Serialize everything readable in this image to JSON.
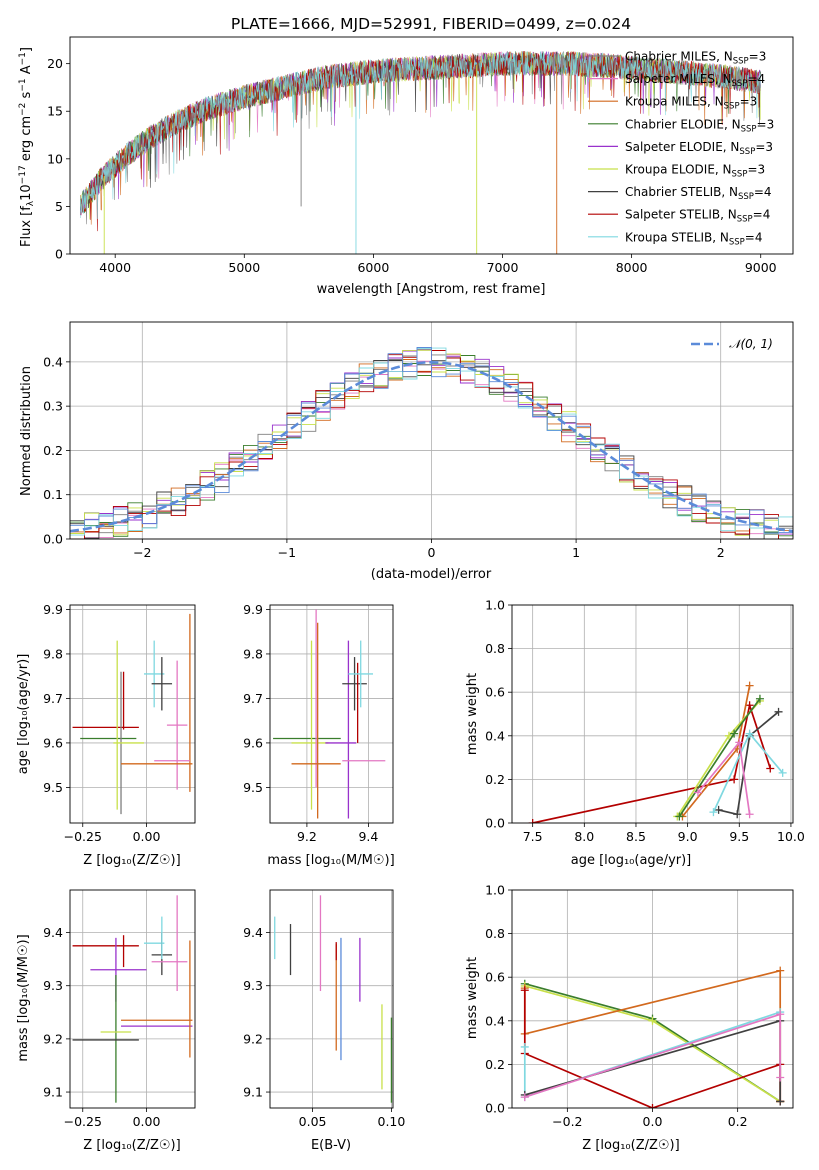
{
  "title": "PLATE=1666, MJD=52991, FIBERID=0499, z=0.024",
  "colors": {
    "chabrier_miles": "#7f7f7f",
    "salpeter_miles": "#e377c2",
    "kroupa_miles": "#d2691e",
    "chabrier_elodie": "#3a7d2c",
    "salpeter_elodie": "#9932cc",
    "kroupa_elodie": "#c8e04a",
    "chabrier_stelib": "#404040",
    "salpeter_stelib": "#b30000",
    "kroupa_stelib": "#7fd8e0",
    "gauss": "#5b8bd9"
  },
  "chart_data": [
    {
      "id": "spectrum",
      "type": "line",
      "xlabel": "wavelength [Angstrom, rest frame]",
      "ylabel": "Flux [f_λ10^−17 erg cm^−2 s^−1 A^−1]",
      "xlim": [
        3650,
        9250
      ],
      "ylim": [
        0,
        22.8
      ],
      "xticks": [
        4000,
        5000,
        6000,
        7000,
        8000,
        9000
      ],
      "yticks": [
        0,
        5,
        10,
        15,
        20
      ],
      "grid": false,
      "legend_position": "top-right",
      "legend": [
        {
          "label": "Chabrier MILES, N",
          "sub": "SSP",
          "tail": "=3",
          "key": "chabrier_miles"
        },
        {
          "label": "Salpeter MILES, N",
          "sub": "SSP",
          "tail": "=4",
          "key": "salpeter_miles"
        },
        {
          "label": "Kroupa MILES, N",
          "sub": "SSP",
          "tail": "=3",
          "key": "kroupa_miles"
        },
        {
          "label": "Chabrier ELODIE, N",
          "sub": "SSP",
          "tail": "=3",
          "key": "chabrier_elodie"
        },
        {
          "label": "Salpeter ELODIE, N",
          "sub": "SSP",
          "tail": "=3",
          "key": "salpeter_elodie"
        },
        {
          "label": "Kroupa ELODIE, N",
          "sub": "SSP",
          "tail": "=3",
          "key": "kroupa_elodie"
        },
        {
          "label": "Chabrier STELIB, N",
          "sub": "SSP",
          "tail": "=4",
          "key": "chabrier_stelib"
        },
        {
          "label": "Salpeter STELIB, N",
          "sub": "SSP",
          "tail": "=4",
          "key": "salpeter_stelib"
        },
        {
          "label": "Kroupa STELIB, N",
          "sub": "SSP",
          "tail": "=4",
          "key": "kroupa_stelib"
        }
      ],
      "continuum": [
        [
          3730,
          5
        ],
        [
          3900,
          8
        ],
        [
          4100,
          10.5
        ],
        [
          4300,
          12.5
        ],
        [
          4500,
          14
        ],
        [
          4700,
          15.2
        ],
        [
          5000,
          16.5
        ],
        [
          5300,
          17.5
        ],
        [
          5600,
          18.5
        ],
        [
          6000,
          19.2
        ],
        [
          6500,
          19.6
        ],
        [
          7000,
          20
        ],
        [
          7500,
          20
        ],
        [
          7800,
          19.8
        ],
        [
          8200,
          19.3
        ],
        [
          8600,
          18.8
        ],
        [
          8900,
          18.3
        ],
        [
          9000,
          18
        ]
      ],
      "dropouts": [
        {
          "x": 3915,
          "y": 0,
          "key": "kroupa_elodie"
        },
        {
          "x": 5440,
          "y": 5,
          "key": "chabrier_miles"
        },
        {
          "x": 5865,
          "y": 0,
          "key": "kroupa_stelib"
        },
        {
          "x": 6800,
          "y": 0,
          "key": "kroupa_elodie"
        },
        {
          "x": 7420,
          "y": 0,
          "key": "kroupa_miles"
        }
      ]
    },
    {
      "id": "residuals",
      "type": "histogram",
      "xlabel": "(data-model)/error",
      "ylabel": "Normed distribution",
      "xlim": [
        -2.5,
        2.5
      ],
      "ylim": [
        0,
        0.49
      ],
      "xticks": [
        -2,
        -1,
        0,
        1,
        2
      ],
      "yticks": [
        0.0,
        0.1,
        0.2,
        0.3,
        0.4
      ],
      "grid": true,
      "bin_width": 0.1,
      "legend_position": "top-right",
      "gauss_label": "𝒩(0, 1)",
      "gauss_key": "gauss"
    },
    {
      "id": "age_vs_z",
      "type": "errorbar",
      "xlabel": "Z [log₁₀(Z/Z☉)]",
      "ylabel": "age  [log₁₀(age/yr)]",
      "xlim": [
        -0.3,
        0.19
      ],
      "ylim": [
        9.42,
        9.91
      ],
      "xticks": [
        -0.25,
        0.0
      ],
      "yticks": [
        9.5,
        9.6,
        9.7,
        9.8,
        9.9
      ],
      "grid": true,
      "points": [
        {
          "key": "salpeter_stelib",
          "x": -0.16,
          "xerr": 0.13,
          "y": 9.635,
          "yerr": 0.0
        },
        {
          "key": "chabrier_elodie",
          "x": -0.15,
          "xerr": 0.11,
          "y": 9.61,
          "yerr": 0.0
        },
        {
          "key": "kroupa_elodie",
          "x": -0.115,
          "xerr": 0.0,
          "y": 9.64,
          "yerr": 0.19
        },
        {
          "key": "chabrier_miles",
          "x": -0.1,
          "xerr": 0.0,
          "y": 9.6,
          "yerr": 0.16
        },
        {
          "key": "salpeter_stelib",
          "x": -0.09,
          "xerr": 0.0,
          "y": 9.695,
          "yerr": 0.065
        },
        {
          "key": "kroupa_elodie",
          "x": -0.07,
          "xerr": 0.06,
          "y": 9.6,
          "yerr": 0.0
        },
        {
          "key": "kroupa_stelib",
          "x": 0.03,
          "xerr": 0.04,
          "y": 9.755,
          "yerr": 0.075
        },
        {
          "key": "chabrier_stelib",
          "x": 0.06,
          "xerr": 0.04,
          "y": 9.733,
          "yerr": 0.06
        },
        {
          "key": "salpeter_miles",
          "x": 0.12,
          "xerr": 0.04,
          "y": 9.64,
          "yerr": 0.145
        },
        {
          "key": "kroupa_miles",
          "x": 0.04,
          "xerr": 0.14,
          "y": 9.553,
          "yerr": 0.0
        },
        {
          "key": "kroupa_miles",
          "x": 0.17,
          "xerr": 0.0,
          "y": 9.69,
          "yerr": 0.2
        },
        {
          "key": "salpeter_miles",
          "x": 0.1,
          "xerr": 0.07,
          "y": 9.56,
          "yerr": 0.0
        }
      ]
    },
    {
      "id": "age_vs_mass",
      "type": "errorbar",
      "xlabel": "mass [log₁₀(M/M☉)]",
      "ylabel": "",
      "xlim": [
        9.08,
        9.48
      ],
      "ylim": [
        9.42,
        9.91
      ],
      "xticks": [
        9.2,
        9.4
      ],
      "yticks": [
        9.5,
        9.6,
        9.7,
        9.8,
        9.9
      ],
      "grid": true,
      "points": [
        {
          "key": "chabrier_elodie",
          "x": 9.2,
          "xerr": 0.11,
          "y": 9.61,
          "yerr": 0.0
        },
        {
          "key": "kroupa_elodie",
          "x": 9.215,
          "xerr": 0.0,
          "y": 9.64,
          "yerr": 0.19
        },
        {
          "key": "kroupa_elodie",
          "x": 9.21,
          "xerr": 0.06,
          "y": 9.6,
          "yerr": 0.0
        },
        {
          "key": "salpeter_miles",
          "x": 9.23,
          "xerr": 0.0,
          "y": 9.7,
          "yerr": 0.2
        },
        {
          "key": "kroupa_miles",
          "x": 9.235,
          "xerr": 0.0,
          "y": 9.65,
          "yerr": 0.22
        },
        {
          "key": "kroupa_miles",
          "x": 9.23,
          "xerr": 0.08,
          "y": 9.553,
          "yerr": 0.0
        },
        {
          "key": "salpeter_elodie",
          "x": 9.31,
          "xerr": 0.05,
          "y": 9.6,
          "yerr": 0.0
        },
        {
          "key": "salpeter_elodie",
          "x": 9.335,
          "xerr": 0.0,
          "y": 9.63,
          "yerr": 0.2
        },
        {
          "key": "chabrier_stelib",
          "x": 9.355,
          "xerr": 0.04,
          "y": 9.733,
          "yerr": 0.06
        },
        {
          "key": "salpeter_stelib",
          "x": 9.365,
          "xerr": 0.0,
          "y": 9.69,
          "yerr": 0.09
        },
        {
          "key": "kroupa_stelib",
          "x": 9.375,
          "xerr": 0.04,
          "y": 9.755,
          "yerr": 0.075
        },
        {
          "key": "salpeter_miles",
          "x": 9.385,
          "xerr": 0.07,
          "y": 9.56,
          "yerr": 0.0
        }
      ]
    },
    {
      "id": "mw_vs_age",
      "type": "line",
      "xlabel": "age  [log₁₀(age/yr)]",
      "ylabel": "mass weight",
      "xlim": [
        7.3,
        10.02
      ],
      "ylim": [
        0,
        1
      ],
      "xticks": [
        7.5,
        8.0,
        8.5,
        9.0,
        9.5,
        10.0
      ],
      "yticks": [
        0.0,
        0.2,
        0.4,
        0.6,
        0.8,
        1.0
      ],
      "grid": true,
      "series": [
        {
          "key": "salpeter_stelib",
          "x": [
            7.5,
            9.45,
            9.6,
            9.8
          ],
          "y": [
            0.0,
            0.2,
            0.54,
            0.25
          ]
        },
        {
          "key": "kroupa_miles",
          "x": [
            8.95,
            9.48,
            9.6
          ],
          "y": [
            0.03,
            0.34,
            0.63
          ]
        },
        {
          "key": "kroupa_elodie",
          "x": [
            8.9,
            9.4,
            9.7
          ],
          "y": [
            0.03,
            0.4,
            0.56
          ]
        },
        {
          "key": "chabrier_elodie",
          "x": [
            8.92,
            9.45,
            9.7
          ],
          "y": [
            0.03,
            0.41,
            0.57
          ]
        },
        {
          "key": "chabrier_stelib",
          "x": [
            9.3,
            9.48,
            9.6,
            9.88
          ],
          "y": [
            0.06,
            0.04,
            0.4,
            0.51
          ]
        },
        {
          "key": "kroupa_stelib",
          "x": [
            9.25,
            9.6,
            9.92
          ],
          "y": [
            0.05,
            0.41,
            0.23
          ]
        },
        {
          "key": "salpeter_miles",
          "x": [
            9.1,
            9.5,
            9.6
          ],
          "y": [
            0.14,
            0.37,
            0.04
          ]
        }
      ]
    },
    {
      "id": "mass_vs_z",
      "type": "errorbar",
      "xlabel": "Z [log₁₀(Z/Z☉)]",
      "ylabel": "mass [log₁₀(M/M☉)]",
      "xlim": [
        -0.3,
        0.19
      ],
      "ylim": [
        9.07,
        9.48
      ],
      "xticks": [
        -0.25,
        0.0
      ],
      "yticks": [
        9.1,
        9.2,
        9.3,
        9.4
      ],
      "grid": true,
      "points": [
        {
          "key": "salpeter_stelib",
          "x": -0.16,
          "xerr": 0.13,
          "y": 9.375,
          "yerr": 0.0
        },
        {
          "key": "salpeter_stelib",
          "x": -0.09,
          "xerr": 0.0,
          "y": 9.365,
          "yerr": 0.03
        },
        {
          "key": "salpeter_elodie",
          "x": -0.11,
          "xerr": 0.11,
          "y": 9.33,
          "yerr": 0.0
        },
        {
          "key": "salpeter_elodie",
          "x": -0.12,
          "xerr": 0.0,
          "y": 9.33,
          "yerr": 0.06
        },
        {
          "key": "chabrier_elodie",
          "x": -0.12,
          "xerr": 0.0,
          "y": 9.2,
          "yerr": 0.12
        },
        {
          "key": "chabrier_stelib",
          "x": -0.16,
          "xerr": 0.13,
          "y": 9.198,
          "yerr": 0.0
        },
        {
          "key": "kroupa_elodie",
          "x": -0.12,
          "xerr": 0.06,
          "y": 9.213,
          "yerr": 0.0
        },
        {
          "key": "kroupa_miles",
          "x": 0.04,
          "xerr": 0.14,
          "y": 9.235,
          "yerr": 0.0
        },
        {
          "key": "salpeter_elodie",
          "x": 0.04,
          "xerr": 0.14,
          "y": 9.224,
          "yerr": 0.0
        },
        {
          "key": "kroupa_stelib",
          "x": 0.03,
          "xerr": 0.04,
          "y": 9.38,
          "yerr": 0.0
        },
        {
          "key": "chabrier_stelib",
          "x": 0.06,
          "xerr": 0.04,
          "y": 9.358,
          "yerr": 0.0
        },
        {
          "key": "chabrier_stelib",
          "x": 0.06,
          "xerr": 0.0,
          "y": 9.36,
          "yerr": 0.04
        },
        {
          "key": "kroupa_stelib",
          "x": 0.06,
          "xerr": 0.0,
          "y": 9.39,
          "yerr": 0.04
        },
        {
          "key": "salpeter_miles",
          "x": 0.12,
          "xerr": 0.0,
          "y": 9.38,
          "yerr": 0.09
        },
        {
          "key": "salpeter_miles",
          "x": 0.09,
          "xerr": 0.07,
          "y": 9.345,
          "yerr": 0.0
        },
        {
          "key": "kroupa_miles",
          "x": 0.17,
          "xerr": 0.0,
          "y": 9.275,
          "yerr": 0.11
        }
      ]
    },
    {
      "id": "mass_vs_ebv",
      "type": "errorbar",
      "xlabel": "E(B-V)",
      "ylabel": "",
      "xlim": [
        0.023,
        0.101
      ],
      "ylim": [
        9.07,
        9.48
      ],
      "xticks": [
        0.05,
        0.1
      ],
      "yticks": [
        9.1,
        9.2,
        9.3,
        9.4
      ],
      "grid": true,
      "points": [
        {
          "key": "kroupa_stelib",
          "x": 0.026,
          "xerr": 0.0,
          "y": 9.39,
          "yerr": 0.04
        },
        {
          "key": "chabrier_stelib",
          "x": 0.036,
          "xerr": 0.0,
          "y": 9.368,
          "yerr": 0.048
        },
        {
          "key": "salpeter_miles",
          "x": 0.055,
          "xerr": 0.0,
          "y": 9.38,
          "yerr": 0.09
        },
        {
          "key": "kroupa_miles",
          "x": 0.065,
          "xerr": 0.0,
          "y": 9.278,
          "yerr": 0.1
        },
        {
          "key": "salpeter_stelib",
          "x": 0.065,
          "xerr": 0.0,
          "y": 9.365,
          "yerr": 0.017
        },
        {
          "key": "gauss",
          "x": 0.068,
          "xerr": 0.0,
          "y": 9.275,
          "yerr": 0.115
        },
        {
          "key": "salpeter_elodie",
          "x": 0.08,
          "xerr": 0.0,
          "y": 9.33,
          "yerr": 0.06
        },
        {
          "key": "kroupa_elodie",
          "x": 0.094,
          "xerr": 0.0,
          "y": 9.185,
          "yerr": 0.08
        },
        {
          "key": "chabrier_elodie",
          "x": 0.1,
          "xerr": 0.0,
          "y": 9.16,
          "yerr": 0.08
        }
      ]
    },
    {
      "id": "mw_vs_z",
      "type": "line",
      "xlabel": "Z [log₁₀(Z/Z☉)]",
      "ylabel": "mass weight",
      "xlim": [
        -0.33,
        0.33
      ],
      "ylim": [
        0,
        1
      ],
      "xticks": [
        -0.2,
        0.0,
        0.2
      ],
      "yticks": [
        0.0,
        0.2,
        0.4,
        0.6,
        0.8,
        1.0
      ],
      "grid": true,
      "series": [
        {
          "key": "chabrier_elodie",
          "x": [
            -0.3,
            0.0,
            0.3
          ],
          "y": [
            0.57,
            0.41,
            0.03
          ]
        },
        {
          "key": "kroupa_elodie",
          "x": [
            -0.3,
            0.0,
            0.3
          ],
          "y": [
            0.56,
            0.4,
            0.03
          ]
        },
        {
          "key": "kroupa_miles",
          "x": [
            -0.3,
            -0.3,
            0.3,
            0.3
          ],
          "y": [
            0.55,
            0.34,
            0.63,
            0.03
          ]
        },
        {
          "key": "salpeter_stelib",
          "x": [
            -0.3,
            -0.3,
            0.0,
            0.3,
            0.3
          ],
          "y": [
            0.54,
            0.25,
            0.0,
            0.2,
            0.03
          ]
        },
        {
          "key": "kroupa_stelib",
          "x": [
            -0.3,
            -0.3,
            0.3
          ],
          "y": [
            0.28,
            0.05,
            0.44
          ]
        },
        {
          "key": "chabrier_stelib",
          "x": [
            -0.3,
            0.3,
            0.3
          ],
          "y": [
            0.06,
            0.4,
            0.03
          ]
        },
        {
          "key": "salpeter_miles",
          "x": [
            -0.3,
            0.3,
            0.3
          ],
          "y": [
            0.05,
            0.43,
            0.14
          ]
        }
      ]
    }
  ]
}
